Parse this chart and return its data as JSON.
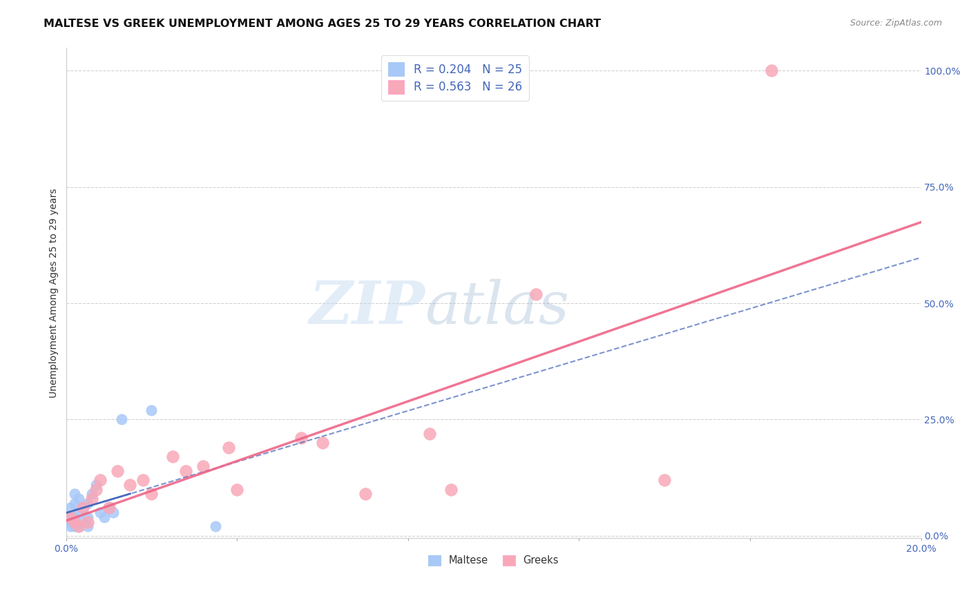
{
  "title": "MALTESE VS GREEK UNEMPLOYMENT AMONG AGES 25 TO 29 YEARS CORRELATION CHART",
  "source": "Source: ZipAtlas.com",
  "ylabel": "Unemployment Among Ages 25 to 29 years",
  "xlim": [
    0.0,
    0.2
  ],
  "ylim": [
    -0.005,
    1.05
  ],
  "xticks": [
    0.0,
    0.04,
    0.08,
    0.12,
    0.16,
    0.2
  ],
  "yticks": [
    0.0,
    0.25,
    0.5,
    0.75,
    1.0
  ],
  "ytick_right_labels": [
    "0.0%",
    "25.0%",
    "50.0%",
    "75.0%",
    "100.0%"
  ],
  "xtick_labels": [
    "0.0%",
    "",
    "",
    "",
    "",
    "20.0%"
  ],
  "maltese_R": 0.204,
  "maltese_N": 25,
  "greek_R": 0.563,
  "greek_N": 26,
  "maltese_color": "#a8c8f8",
  "greek_color": "#f8a8b8",
  "maltese_line_color": "#4466bb",
  "greek_line_color": "#ee6688",
  "grid_color": "#cccccc",
  "watermark_zip": "ZIP",
  "watermark_atlas": "atlas",
  "maltese_x": [
    0.001,
    0.001,
    0.001,
    0.001,
    0.002,
    0.002,
    0.002,
    0.002,
    0.003,
    0.003,
    0.003,
    0.004,
    0.004,
    0.005,
    0.005,
    0.005,
    0.006,
    0.007,
    0.008,
    0.009,
    0.01,
    0.011,
    0.013,
    0.02,
    0.035
  ],
  "maltese_y": [
    0.02,
    0.03,
    0.04,
    0.06,
    0.02,
    0.04,
    0.07,
    0.09,
    0.02,
    0.05,
    0.08,
    0.03,
    0.06,
    0.02,
    0.04,
    0.07,
    0.09,
    0.11,
    0.05,
    0.04,
    0.06,
    0.05,
    0.25,
    0.27,
    0.02
  ],
  "greek_x": [
    0.001,
    0.002,
    0.003,
    0.004,
    0.005,
    0.006,
    0.007,
    0.008,
    0.01,
    0.012,
    0.015,
    0.018,
    0.02,
    0.025,
    0.028,
    0.032,
    0.038,
    0.04,
    0.055,
    0.06,
    0.07,
    0.085,
    0.09,
    0.11,
    0.14,
    0.165
  ],
  "greek_y": [
    0.04,
    0.03,
    0.02,
    0.06,
    0.03,
    0.08,
    0.1,
    0.12,
    0.06,
    0.14,
    0.11,
    0.12,
    0.09,
    0.17,
    0.14,
    0.15,
    0.19,
    0.1,
    0.21,
    0.2,
    0.09,
    0.22,
    0.1,
    0.52,
    0.12,
    1.0
  ],
  "background_color": "#ffffff",
  "title_fontsize": 11.5,
  "axis_label_fontsize": 10,
  "tick_fontsize": 10,
  "legend_fontsize": 12,
  "blue_tick_color": "#4466bb",
  "scatter_size_maltese": 120,
  "scatter_size_greek": 160
}
